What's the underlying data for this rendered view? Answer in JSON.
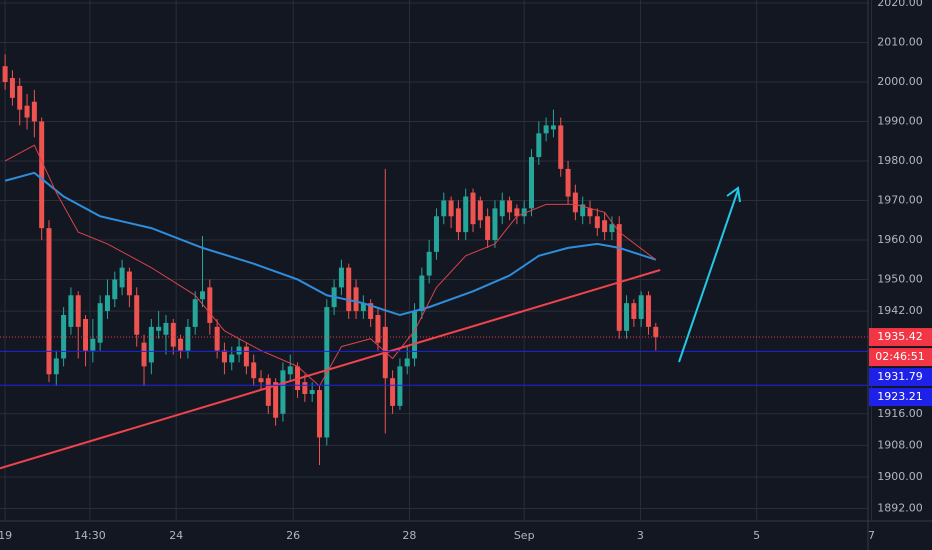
{
  "chart_data": {
    "type": "candlestick",
    "x": [
      0,
      1,
      2,
      3,
      4,
      5,
      6,
      7,
      8,
      9,
      10,
      11,
      12,
      13,
      14,
      15,
      16,
      17,
      18,
      19,
      20,
      21,
      22,
      23,
      24,
      25,
      26,
      27,
      28,
      29,
      30,
      31,
      32,
      33,
      34,
      35,
      36,
      37,
      38,
      39,
      40,
      41,
      42,
      43,
      44,
      45,
      46,
      47,
      48,
      49,
      50,
      51,
      52,
      53,
      54,
      55,
      56,
      57,
      58,
      59,
      60,
      61,
      62,
      63,
      64,
      65,
      66,
      67,
      68,
      69,
      70,
      71,
      72,
      73,
      74,
      75,
      76,
      77,
      78,
      79,
      80,
      81,
      82,
      83,
      84,
      85,
      86,
      87,
      88,
      89
    ],
    "open": [
      2004,
      2001,
      1999,
      1994,
      1995,
      1990,
      1963,
      1926,
      1930,
      1938,
      1946,
      1940,
      1932,
      1934,
      1942,
      1945,
      1948,
      1952,
      1946,
      1934,
      1929,
      1937,
      1936,
      1939,
      1935,
      1932,
      1938,
      1945,
      1948,
      1938,
      1932,
      1929,
      1931,
      1933,
      1929,
      1925,
      1925,
      1924,
      1916,
      1926,
      1928,
      1924,
      1921,
      1922,
      1910,
      1943,
      1948,
      1953,
      1948,
      1942,
      1944,
      1941,
      1938,
      1925,
      1918,
      1928,
      1930,
      1942,
      1951,
      1957,
      1966,
      1970,
      1968,
      1962,
      1972,
      1970,
      1966,
      1960,
      1966,
      1970,
      1968,
      1966,
      1968,
      1981,
      1987,
      1988,
      1989,
      1978,
      1972,
      1966,
      1968,
      1966,
      1965,
      1962,
      1964,
      1937,
      1944,
      1940,
      1946,
      1938
    ],
    "high": [
      2007,
      2003,
      2001,
      1997,
      1998,
      1991,
      1965,
      1932,
      1943,
      1948,
      1947,
      1941,
      1940,
      1946,
      1950,
      1952,
      1955,
      1953,
      1948,
      1936,
      1940,
      1942,
      1941,
      1940,
      1936,
      1940,
      1947,
      1961,
      1950,
      1940,
      1934,
      1933,
      1935,
      1934,
      1931,
      1927,
      1926,
      1925,
      1929,
      1931,
      1929,
      1926,
      1924,
      1923,
      1945,
      1950,
      1955,
      1954,
      1950,
      1946,
      1945,
      1943,
      1978,
      1927,
      1930,
      1933,
      1944,
      1953,
      1960,
      1968,
      1972,
      1971,
      1970,
      1973,
      1973,
      1971,
      1968,
      1970,
      1972,
      1971,
      1969,
      1970,
      1983,
      1990,
      1991,
      1993,
      1991,
      1980,
      1974,
      1971,
      1970,
      1968,
      1967,
      1966,
      1966,
      1946,
      1945,
      1947,
      1947,
      1939
    ],
    "low": [
      1998,
      1994,
      1989,
      1988,
      1986,
      1960,
      1924,
      1923,
      1928,
      1936,
      1930,
      1928,
      1929,
      1932,
      1940,
      1943,
      1946,
      1943,
      1933,
      1923,
      1926,
      1935,
      1931,
      1931,
      1930,
      1930,
      1936,
      1943,
      1936,
      1930,
      1926,
      1927,
      1929,
      1926,
      1923,
      1922,
      1916,
      1913,
      1914,
      1924,
      1920,
      1919,
      1919,
      1903,
      1908,
      1941,
      1946,
      1940,
      1940,
      1940,
      1938,
      1932,
      1911,
      1916,
      1917,
      1926,
      1928,
      1940,
      1949,
      1955,
      1964,
      1963,
      1960,
      1960,
      1962,
      1963,
      1958,
      1958,
      1964,
      1965,
      1964,
      1964,
      1966,
      1979,
      1985,
      1986,
      1976,
      1969,
      1965,
      1964,
      1964,
      1961,
      1960,
      1960,
      1935,
      1935,
      1938,
      1938,
      1936,
      1932
    ],
    "close": [
      2000,
      1996,
      1993,
      1991,
      1990,
      1963,
      1926,
      1930,
      1941,
      1946,
      1938,
      1932,
      1935,
      1944,
      1946,
      1950,
      1953,
      1946,
      1936,
      1928,
      1938,
      1938,
      1939,
      1933,
      1932,
      1938,
      1945,
      1947,
      1939,
      1932,
      1929,
      1931,
      1933,
      1928,
      1925,
      1924,
      1918,
      1915,
      1927,
      1928,
      1922,
      1921,
      1922,
      1910,
      1943,
      1948,
      1953,
      1942,
      1942,
      1944,
      1940,
      1934,
      1925,
      1918,
      1928,
      1930,
      1942,
      1951,
      1957,
      1966,
      1970,
      1966,
      1962,
      1971,
      1964,
      1965,
      1960,
      1968,
      1970,
      1967,
      1966,
      1968,
      1981,
      1987,
      1989,
      1989,
      1978,
      1971,
      1967,
      1969,
      1966,
      1963,
      1962,
      1964,
      1937,
      1944,
      1940,
      1946,
      1938,
      1935.42
    ],
    "up_color": "#26a69a",
    "down_color": "#ef5350",
    "lines": [
      {
        "color": "#2f8ddb",
        "width": 2,
        "x": [
          0,
          4,
          8,
          13,
          20,
          27,
          34,
          40,
          44,
          49,
          54,
          58,
          64,
          69,
          73,
          77,
          81,
          84,
          89
        ],
        "values": [
          1975,
          1977,
          1971,
          1966,
          1963,
          1958,
          1954,
          1950,
          1946,
          1944,
          1941,
          1943,
          1947,
          1951,
          1956,
          1958,
          1959,
          1958,
          1955
        ]
      },
      {
        "color": "#d9434a",
        "width": 1,
        "x": [
          0,
          4,
          7,
          10,
          14,
          20,
          26,
          30,
          35,
          40,
          43,
          46,
          50,
          53,
          56,
          59,
          63,
          67,
          70,
          74,
          78,
          82,
          84,
          89
        ],
        "values": [
          1980,
          1984,
          1972,
          1962,
          1959,
          1953,
          1946,
          1937,
          1932,
          1928,
          1923,
          1933,
          1935,
          1930,
          1937,
          1948,
          1956,
          1959,
          1966,
          1969,
          1969,
          1967,
          1962,
          1955
        ]
      },
      {
        "color": "#f0444d",
        "width": 2,
        "x": [
          -0.7,
          89.6
        ],
        "values": [
          1902.2,
          1952.4
        ]
      }
    ],
    "levels": [
      {
        "value": 1935.42,
        "color": "#f23645",
        "style": "dotted",
        "countdown": "02:46:51"
      },
      {
        "value": 1931.79,
        "color": "#1e22e8",
        "style": "solid"
      },
      {
        "value": 1923.21,
        "color": "#1e22e8",
        "style": "solid"
      }
    ],
    "xlim": [
      -0.7,
      118.3
    ],
    "xticks": [
      {
        "value": 0,
        "label": "19"
      },
      {
        "value": 11.6,
        "label": "14:30"
      },
      {
        "value": 23.4,
        "label": "24"
      },
      {
        "value": 39.4,
        "label": "26"
      },
      {
        "value": 55.3,
        "label": "28"
      },
      {
        "value": 71,
        "label": "Sep"
      },
      {
        "value": 86.9,
        "label": "3"
      },
      {
        "value": 102.8,
        "label": "5"
      },
      {
        "value": 118.5,
        "label": "7"
      }
    ],
    "ylim": [
      1889.1,
      2020.76
    ],
    "yticks": [
      {
        "value": 2020,
        "label": "2020.00"
      },
      {
        "value": 2010,
        "label": "2010.00"
      },
      {
        "value": 2000,
        "label": "2000.00"
      },
      {
        "value": 1990,
        "label": "1990.00"
      },
      {
        "value": 1980,
        "label": "1980.00"
      },
      {
        "value": 1970,
        "label": "1970.00"
      },
      {
        "value": 1960,
        "label": "1960.00"
      },
      {
        "value": 1950,
        "label": "1950.00"
      },
      {
        "value": 1942,
        "label": "1942.00"
      },
      {
        "value": 1916,
        "label": "1916.00"
      },
      {
        "value": 1908,
        "label": "1908.00"
      },
      {
        "value": 1900,
        "label": "1900.00"
      },
      {
        "value": 1892,
        "label": "1892.00"
      }
    ],
    "grid": true
  }
}
